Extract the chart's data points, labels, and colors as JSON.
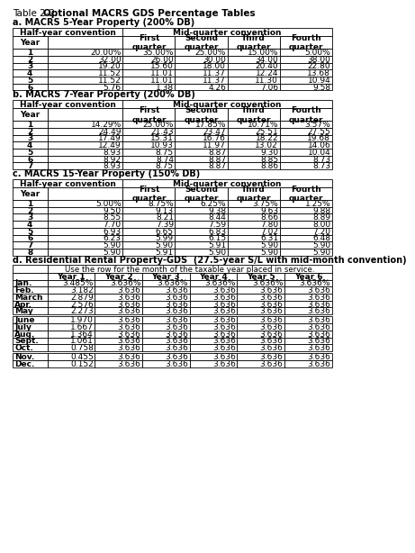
{
  "title_normal": "Table 2-2. ",
  "title_bold": "Optional MACRS GDS Percentage Tables",
  "bg_color": "#ffffff",
  "section_a_title": "a. MACRS 5-Year Property (200% DB)",
  "section_b_title": "b. MACRS 7-Year Property (200% DB)",
  "section_c_title": "c. MACRS 15-Year Property (150% DB)",
  "section_d_title": "d. Residential Rental Property-GDS  (27.5-year S/L with mid-month convention)",
  "half_year_label": "Half-year convention",
  "mid_quarter_label": "Mid-quarter convention",
  "quarter_labels": [
    "First\nquarter",
    "Second\nquarter",
    "Third\nquarter",
    "Fourth\nquarter"
  ],
  "year_label": "Year",
  "section_a_data": [
    [
      "1",
      "20.00%",
      "35.00%",
      "25.00%",
      "15.00%",
      "5.00%"
    ],
    [
      "2",
      "32.00",
      "26.00",
      "30.00",
      "34.00",
      "38.00"
    ],
    [
      "3",
      "19.20",
      "15.60",
      "18.00",
      "20.40",
      "22.80"
    ],
    [
      "4",
      "11.52",
      "11.01",
      "11.37",
      "12.24",
      "13.68"
    ],
    [
      "5",
      "11.52",
      "11.01",
      "11.37",
      "11.30",
      "10.94"
    ],
    [
      "6",
      "5.76",
      "1.38",
      "4.26",
      "7.06",
      "9.58"
    ]
  ],
  "section_b_data": [
    [
      "1",
      "14.29%",
      "25.00%",
      "17.85%",
      "10.71%",
      "3.57%"
    ],
    [
      "2",
      "24.49",
      "21.43",
      "23.47",
      "25.51",
      "27.55"
    ],
    [
      "3",
      "17.49",
      "15.31",
      "16.76",
      "18.22",
      "19.68"
    ],
    [
      "4",
      "12.49",
      "10.93",
      "11.97",
      "13.02",
      "14.06"
    ],
    [
      "5",
      "8.93",
      "8.75",
      "8.87",
      "9.30",
      "10.04"
    ],
    [
      "6",
      "8.92",
      "8.74",
      "8.87",
      "8.85",
      "8.73"
    ],
    [
      "7",
      "8.93",
      "8.75",
      "8.87",
      "8.86",
      "8.73"
    ]
  ],
  "section_c_data": [
    [
      "1",
      "5.00%",
      "8.75%",
      "6.25%",
      "3.75%",
      "1.25%"
    ],
    [
      "2",
      "9.50",
      "9.13",
      "9.38",
      "9.63",
      "9.88"
    ],
    [
      "3",
      "8.55",
      "8.21",
      "8.44",
      "8.66",
      "8.89"
    ],
    [
      "4",
      "7.70",
      "7.39",
      "7.59",
      "7.80",
      "8.00"
    ],
    [
      "5",
      "6.93",
      "6.65",
      "6.83",
      "7.02",
      "7.20"
    ],
    [
      "6",
      "6.23",
      "5.99",
      "6.15",
      "6.31",
      "6.48"
    ],
    [
      "7",
      "5.90",
      "5.90",
      "5.91",
      "5.90",
      "5.90"
    ],
    [
      "8",
      "5.90",
      "5.91",
      "5.90",
      "5.90",
      "5.90"
    ]
  ],
  "section_d_header": "Use the row for the month of the taxable year placed in service.",
  "section_d_years": [
    "Year 1",
    "Year 2",
    "Year 3",
    "Year 4",
    "Year 5",
    "Year 6"
  ],
  "section_d_groups": [
    [
      [
        "Jan.",
        "3.485%",
        "3.636%",
        "3.636%",
        "3.636%",
        "3.636%",
        "3.636%"
      ],
      [
        "Feb.",
        "3.182",
        "3.636",
        "3.636",
        "3.636",
        "3.636",
        "3.636"
      ],
      [
        "March",
        "2.879",
        "3.636",
        "3.636",
        "3.636",
        "3.636",
        "3.636"
      ],
      [
        "Apr.",
        "2.576",
        "3.636",
        "3.636",
        "3.636",
        "3.636",
        "3.636"
      ],
      [
        "May",
        "2.273",
        "3.636",
        "3.636",
        "3.636",
        "3.636",
        "3.636"
      ]
    ],
    [
      [
        "June",
        "1.970",
        "3.636",
        "3.636",
        "3.636",
        "3.636",
        "3.636"
      ],
      [
        "July",
        "1.667",
        "3.636",
        "3.636",
        "3.636",
        "3.636",
        "3.636"
      ],
      [
        "Aug.",
        "1.364",
        "3.636",
        "3.636",
        "3.636",
        "3.636",
        "3.636"
      ],
      [
        "Sept.",
        "1.061",
        "3.636",
        "3.636",
        "3.636",
        "3.636",
        "3.636"
      ],
      [
        "Oct.",
        "0.758",
        "3.636",
        "3.636",
        "3.636",
        "3.636",
        "3.636"
      ]
    ],
    [
      [
        "Nov.",
        "0.455",
        "3.636",
        "3.636",
        "3.636",
        "3.636",
        "3.636"
      ],
      [
        "Dec.",
        "0.152",
        "3.636",
        "3.636",
        "3.636",
        "3.636",
        "3.636"
      ]
    ]
  ]
}
